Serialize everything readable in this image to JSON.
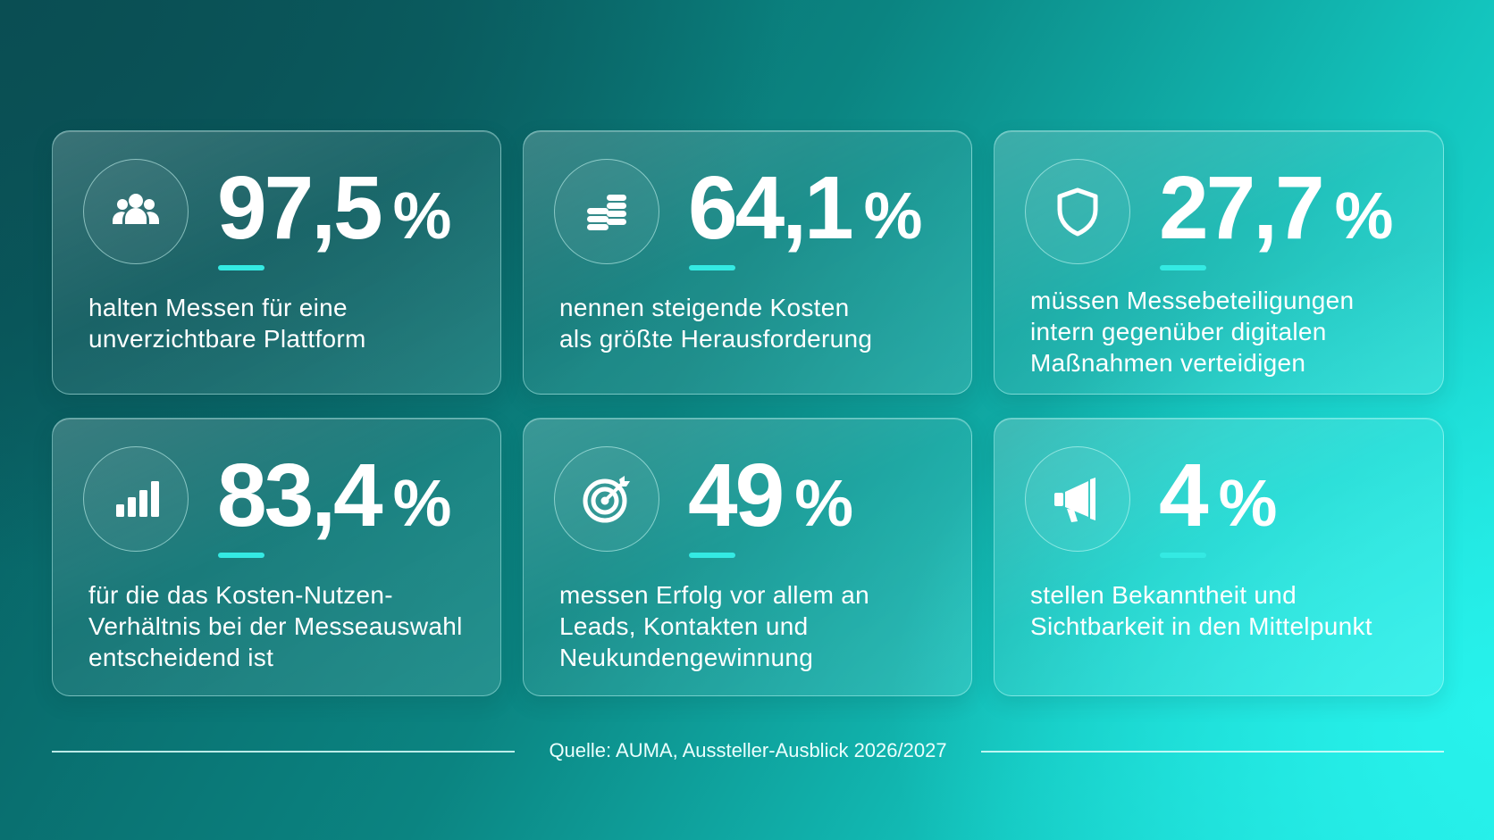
{
  "cards": [
    {
      "value": "97,5",
      "unit": "%",
      "icon": "people-icon",
      "lines": [
        "halten Messen für eine",
        "unverzichtbare Plattform"
      ]
    },
    {
      "value": "64,1",
      "unit": "%",
      "icon": "coins-icon",
      "lines": [
        "nennen steigende Kosten",
        "als größte Herausforderung"
      ]
    },
    {
      "value": "27,7",
      "unit": "%",
      "icon": "shield-icon",
      "lines": [
        "müssen Messebeteiligungen",
        "intern gegenüber digitalen",
        "Maßnahmen verteidigen"
      ]
    },
    {
      "value": "83,4",
      "unit": "%",
      "icon": "bar-chart-icon",
      "lines": [
        "für die das Kosten-Nutzen-",
        "Verhältnis bei der Messeauswahl",
        "entscheidend ist"
      ]
    },
    {
      "value": "49",
      "unit": "%",
      "icon": "target-icon",
      "lines": [
        "messen Erfolg vor allem an",
        "Leads, Kontakten und",
        "Neukundengewinnung"
      ]
    },
    {
      "value": "4",
      "unit": "%",
      "icon": "megaphone-icon",
      "lines": [
        "stellen Bekanntheit und",
        "Sichtbarkeit in den Mittelpunkt"
      ]
    }
  ],
  "footer": {
    "source": "Quelle: AUMA, Aussteller-Ausblick 2026/2027"
  },
  "colors": {
    "accent": "#34eae3",
    "text": "#ffffff"
  }
}
